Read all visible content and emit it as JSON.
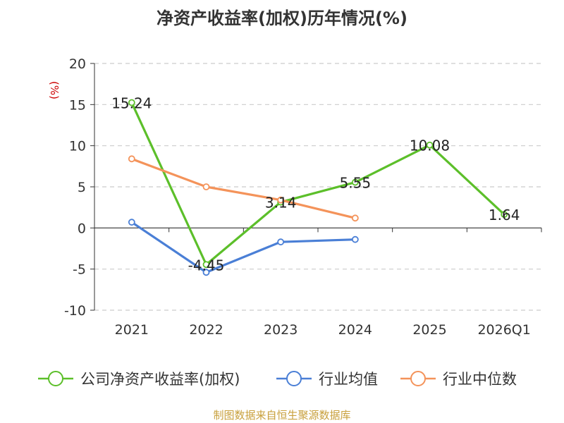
{
  "title": "净资产收益率(加权)历年情况(%)",
  "footer": "制图数据来自恒生聚源数据库",
  "chart_data": {
    "type": "line",
    "title": "净资产收益率(加权)历年情况(%)",
    "ylabel": "(%)",
    "xlabel": "",
    "categories": [
      "2021",
      "2022",
      "2023",
      "2024",
      "2025",
      "2026Q1"
    ],
    "ylim": [
      -10,
      20
    ],
    "yticks": [
      20,
      15,
      10,
      5,
      0,
      -5,
      -10
    ],
    "grid": true,
    "legend_position": "bottom",
    "series": [
      {
        "name": "公司净资产收益率(加权)",
        "color": "#5cbf2a",
        "values": [
          15.24,
          -4.45,
          3.14,
          5.55,
          10.08,
          1.64
        ],
        "labels": [
          "15.24",
          "-4.45",
          "3.14",
          "5.55",
          "10.08",
          "1.64"
        ]
      },
      {
        "name": "行业均值",
        "color": "#4a7fd6",
        "values": [
          0.7,
          -5.4,
          -1.7,
          -1.4,
          null,
          null
        ]
      },
      {
        "name": "行业中位数",
        "color": "#f4935a",
        "values": [
          8.4,
          5.0,
          3.4,
          1.2,
          null,
          null
        ]
      }
    ]
  }
}
